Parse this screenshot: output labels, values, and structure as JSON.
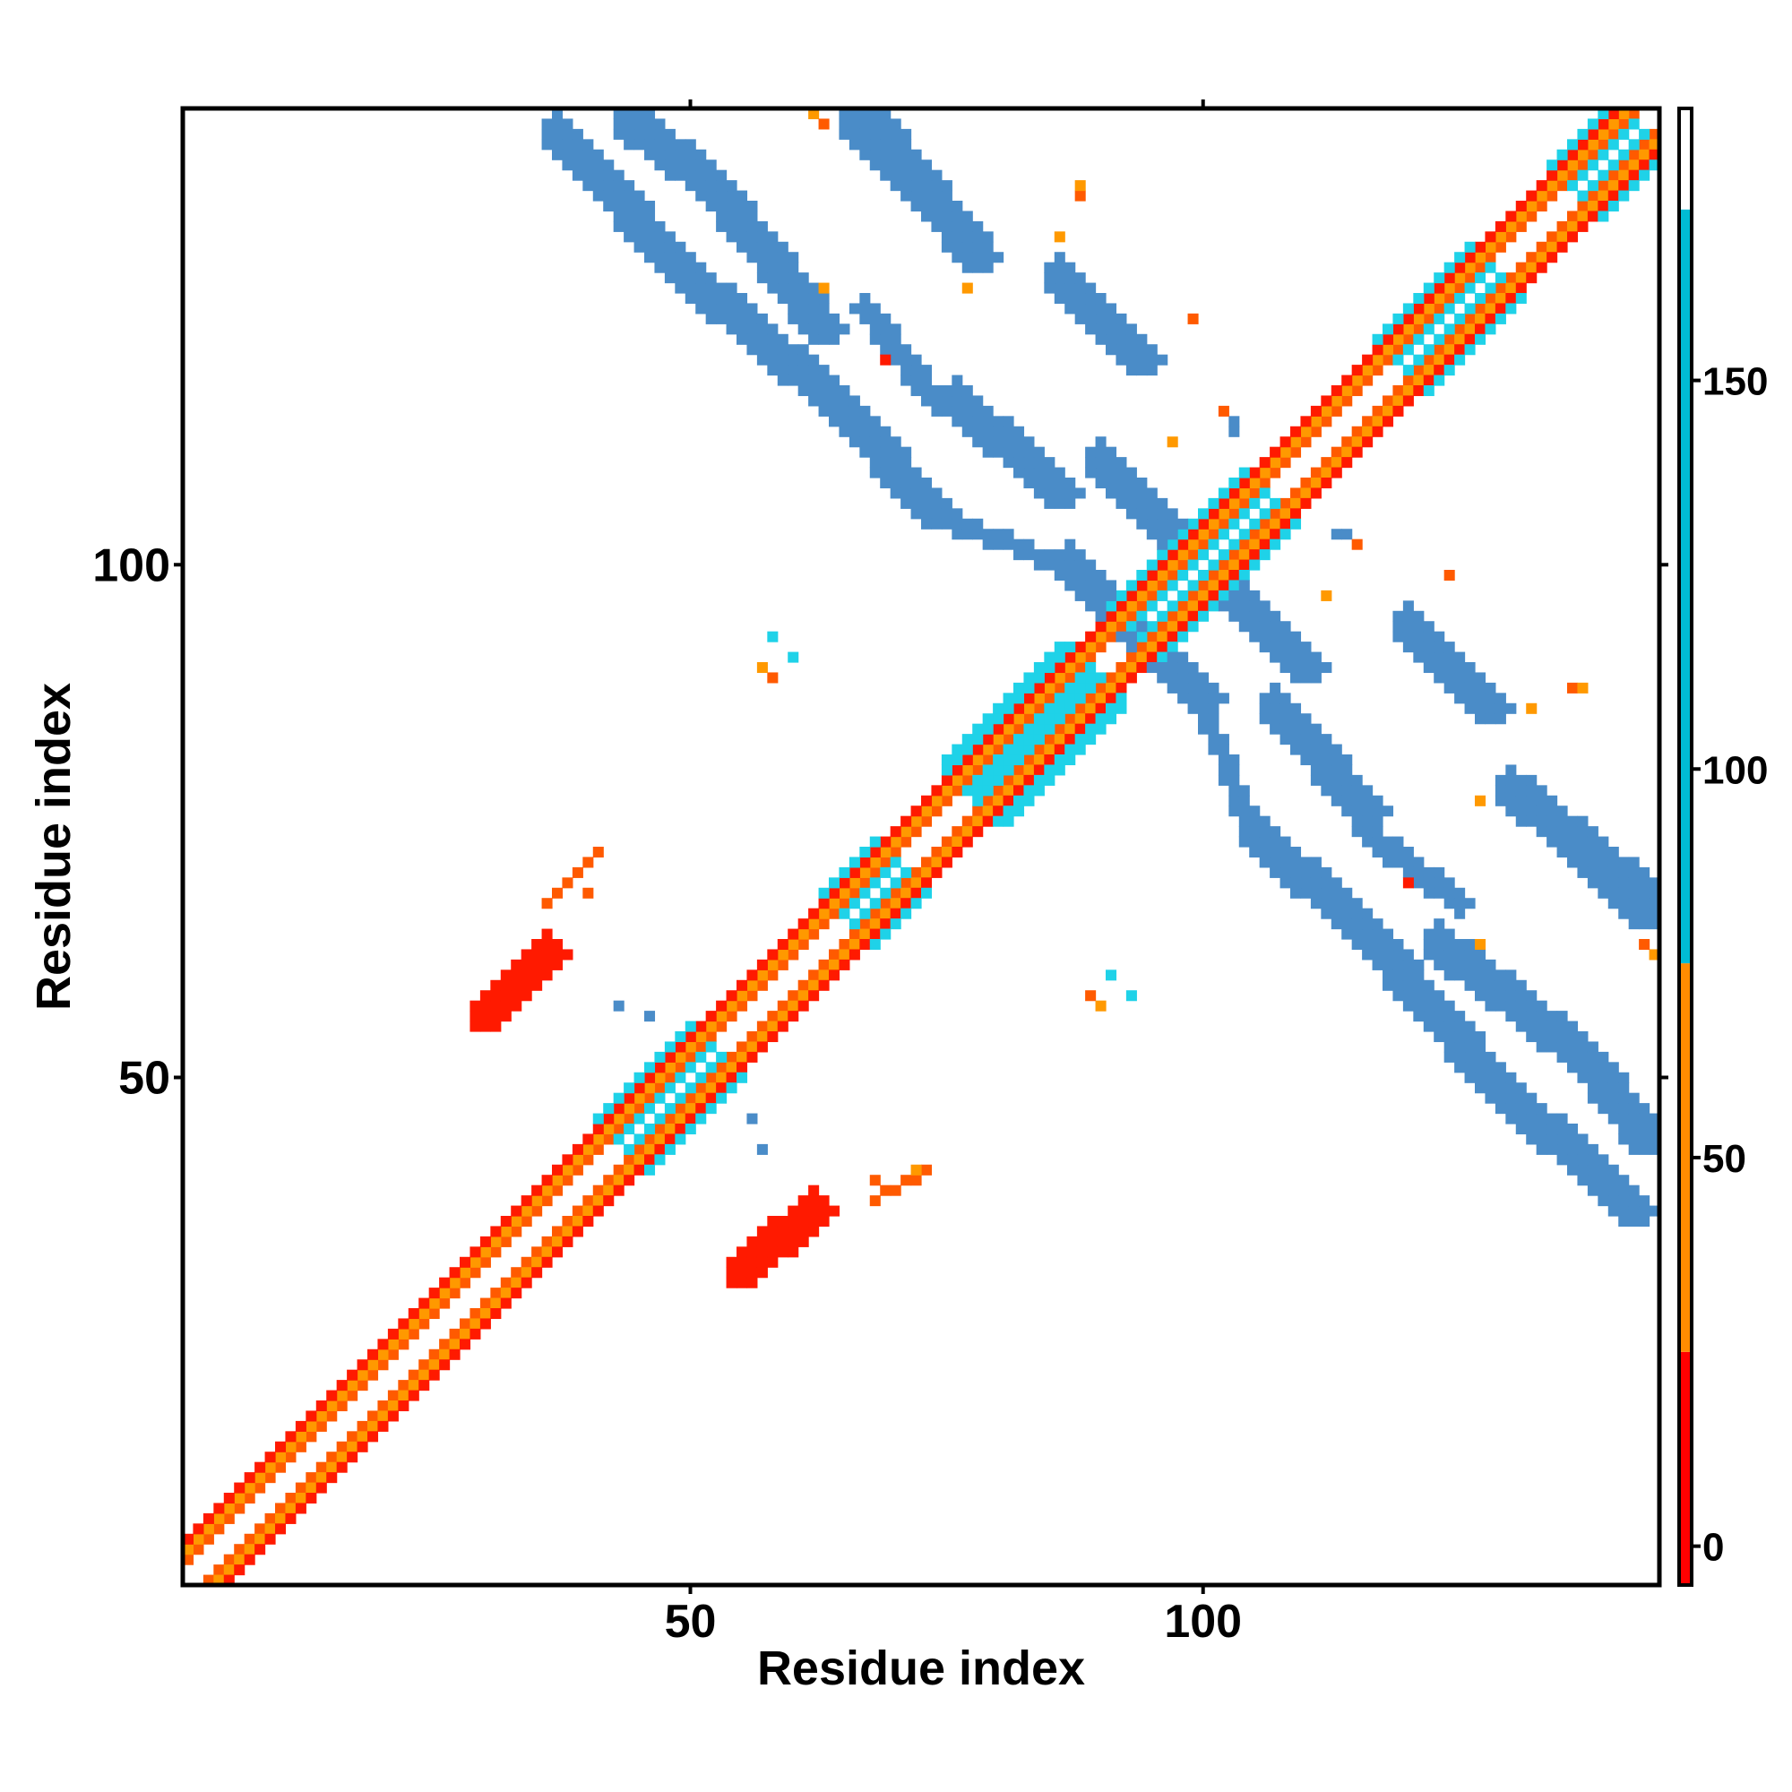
{
  "chart_data": {
    "type": "heatmap",
    "subtype": "residue contact map (symmetric)",
    "xlabel": "Residue index",
    "ylabel": "Residue index",
    "xlim": [
      1,
      144
    ],
    "ylim": [
      1,
      144
    ],
    "x_ticks": [
      "50",
      "100"
    ],
    "x_tick_values": [
      50,
      100
    ],
    "y_ticks": [
      "50",
      "100"
    ],
    "y_tick_values": [
      50,
      100
    ],
    "grid": false,
    "colorbar": {
      "placement": "right",
      "range": [
        -5,
        185
      ],
      "ticks": [
        "0",
        "50",
        "100",
        "150"
      ],
      "tick_values": [
        0,
        50,
        100,
        150
      ],
      "bands": [
        {
          "from": -5,
          "to": 25,
          "color": "#ff0000"
        },
        {
          "from": 25,
          "to": 75,
          "color": "#ff8c00"
        },
        {
          "from": 75,
          "to": 172,
          "color": "#00bcd4"
        },
        {
          "from": 172,
          "to": 185,
          "color": "#ffffff"
        }
      ]
    },
    "value_colors": {
      "red": "#ff1a00",
      "red_orange": "#ff5a00",
      "orange": "#ff9900",
      "cyan": "#1fd2e8",
      "steel_blue": "#4a8cc8"
    },
    "contact_segments": [
      {
        "i_start": 1,
        "j_start": 3,
        "i_end": 144,
        "j_end": 146,
        "value": 30,
        "width": 1
      },
      {
        "i_start": 1,
        "j_start": 4,
        "i_end": 144,
        "j_end": 147,
        "value": 55,
        "width": 1
      },
      {
        "i_start": 1,
        "j_start": 5,
        "i_end": 144,
        "j_end": 148,
        "value": 12,
        "width": 1
      },
      {
        "i_start": 10,
        "j_start": 13,
        "i_end": 14,
        "j_end": 17,
        "value": 80,
        "width": 2
      },
      {
        "i_start": 17,
        "j_start": 20,
        "i_end": 20,
        "j_end": 23,
        "value": 100,
        "width": 3
      },
      {
        "i_start": 28,
        "j_start": 31,
        "i_end": 32,
        "j_end": 35,
        "value": 60,
        "width": 3
      },
      {
        "i_start": 35,
        "j_start": 38,
        "i_end": 38,
        "j_end": 41,
        "value": 110,
        "width": 3
      },
      {
        "i_start": 42,
        "j_start": 45,
        "i_end": 50,
        "j_end": 53,
        "value": 105,
        "width": 4
      },
      {
        "i_start": 50,
        "j_start": 53,
        "i_end": 54,
        "j_end": 57,
        "value": 95,
        "width": 3
      },
      {
        "i_start": 59,
        "j_start": 62,
        "i_end": 66,
        "j_end": 69,
        "value": 12,
        "width": 3
      },
      {
        "i_start": 64,
        "j_start": 67,
        "i_end": 68,
        "j_end": 71,
        "value": 130,
        "width": 4
      },
      {
        "i_start": 68,
        "j_start": 71,
        "i_end": 74,
        "j_end": 77,
        "value": 40,
        "width": 3
      },
      {
        "i_start": 77,
        "j_start": 80,
        "i_end": 87,
        "j_end": 90,
        "value": 125,
        "width": 5
      },
      {
        "i_start": 88,
        "j_start": 91,
        "i_end": 94,
        "j_end": 97,
        "value": 30,
        "width": 3
      },
      {
        "i_start": 92,
        "j_start": 95,
        "i_end": 104,
        "j_end": 107,
        "value": 110,
        "width": 4
      },
      {
        "i_start": 104,
        "j_start": 107,
        "i_end": 112,
        "j_end": 115,
        "value": 55,
        "width": 3
      },
      {
        "i_start": 118,
        "j_start": 121,
        "i_end": 126,
        "j_end": 129,
        "value": 110,
        "width": 4
      },
      {
        "i_start": 126,
        "j_start": 129,
        "i_end": 134,
        "j_end": 137,
        "value": 15,
        "width": 3
      },
      {
        "i_start": 135,
        "j_start": 138,
        "i_end": 140,
        "j_end": 143,
        "value": 115,
        "width": 4
      },
      {
        "i_start": 103,
        "j_start": 97,
        "i_end": 110,
        "j_end": 90,
        "value": 165,
        "width": 4
      },
      {
        "i_start": 107,
        "j_start": 86,
        "i_end": 116,
        "j_end": 76,
        "value": 160,
        "width": 4
      },
      {
        "i_start": 116,
        "j_start": 74,
        "i_end": 125,
        "j_end": 67,
        "value": 165,
        "width": 3
      },
      {
        "i_start": 123,
        "j_start": 63,
        "i_end": 137,
        "j_end": 52,
        "value": 165,
        "width": 4
      },
      {
        "i_start": 137,
        "j_start": 52,
        "i_end": 143,
        "j_end": 44,
        "value": 160,
        "width": 4
      },
      {
        "i_start": 120,
        "j_start": 94,
        "i_end": 128,
        "j_end": 86,
        "value": 165,
        "width": 4
      },
      {
        "i_start": 130,
        "j_start": 78,
        "i_end": 144,
        "j_end": 67,
        "value": 165,
        "width": 4
      },
      {
        "i_start": 37,
        "j_start": 142,
        "i_end": 50,
        "j_end": 128,
        "value": 165,
        "width": 4
      },
      {
        "i_start": 50,
        "j_start": 128,
        "i_end": 64,
        "j_end": 116,
        "value": 165,
        "width": 4
      },
      {
        "i_start": 64,
        "j_start": 116,
        "i_end": 74,
        "j_end": 105,
        "value": 165,
        "width": 4
      },
      {
        "i_start": 74,
        "j_start": 104,
        "i_end": 88,
        "j_end": 99,
        "value": 150,
        "width": 2
      },
      {
        "i_start": 87,
        "j_start": 100,
        "i_end": 93,
        "j_end": 94,
        "value": 165,
        "width": 4
      },
      {
        "i_start": 66,
        "j_start": 143,
        "i_end": 77,
        "j_end": 132,
        "value": 165,
        "width": 4
      },
      {
        "i_start": 86,
        "j_start": 128,
        "i_end": 93,
        "j_end": 121,
        "value": 165,
        "width": 4
      }
    ],
    "contact_patches": [
      {
        "i_start": 30,
        "j_start": 56,
        "i_end": 36,
        "j_end": 62,
        "value": 12,
        "width": 4
      },
      {
        "i_start": 55,
        "j_start": 31,
        "i_end": 62,
        "j_end": 37,
        "value": 12,
        "width": 4
      },
      {
        "i_start": 36,
        "j_start": 67,
        "i_end": 41,
        "j_end": 72,
        "value": 40,
        "width": 1
      },
      {
        "i_start": 68,
        "j_start": 38,
        "i_end": 73,
        "j_end": 41,
        "value": 40,
        "width": 1
      }
    ],
    "isolated_contacts": [
      {
        "i": 62,
        "j": 144,
        "value": 55
      },
      {
        "i": 88,
        "j": 136,
        "value": 40
      },
      {
        "i": 86,
        "j": 132,
        "value": 60
      },
      {
        "i": 77,
        "j": 127,
        "value": 70
      },
      {
        "i": 69,
        "j": 120,
        "value": 12
      },
      {
        "i": 71,
        "j": 120,
        "value": 12
      },
      {
        "i": 102,
        "j": 103,
        "value": 40
      },
      {
        "i": 104,
        "j": 105,
        "value": 40
      },
      {
        "i": 103,
        "j": 113,
        "value": 150
      },
      {
        "i": 113,
        "j": 103,
        "value": 150
      },
      {
        "i": 114,
        "j": 103,
        "value": 150
      },
      {
        "i": 115,
        "j": 102,
        "value": 40
      },
      {
        "i": 112,
        "j": 97,
        "value": 60
      },
      {
        "i": 122,
        "j": 94,
        "value": 12
      },
      {
        "i": 124,
        "j": 99,
        "value": 40
      },
      {
        "i": 137,
        "j": 88,
        "value": 55
      },
      {
        "i": 120,
        "j": 70,
        "value": 12
      },
      {
        "i": 127,
        "j": 63,
        "value": 55
      },
      {
        "i": 143,
        "j": 63,
        "value": 40
      },
      {
        "i": 60,
        "j": 91,
        "value": 110
      },
      {
        "i": 58,
        "j": 89,
        "value": 40
      },
      {
        "i": 43,
        "j": 57,
        "value": 165
      },
      {
        "i": 56,
        "j": 46,
        "value": 165
      },
      {
        "i": 90,
        "j": 57,
        "value": 60
      },
      {
        "i": 93,
        "j": 58,
        "value": 110
      },
      {
        "i": 68,
        "j": 40,
        "value": 40
      },
      {
        "i": 72,
        "j": 41,
        "value": 55
      }
    ]
  }
}
